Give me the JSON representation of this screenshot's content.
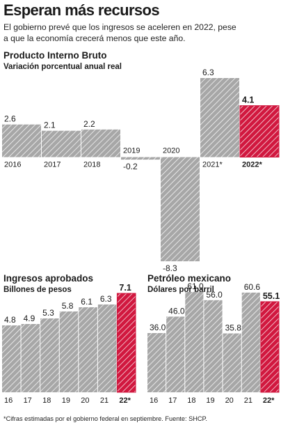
{
  "headline": "Esperan más recursos",
  "subtitle": "El gobierno prevé que los ingresos se aceleren en 2022, pese a que la economía crecerá menos que este año.",
  "colors": {
    "gray": "#a7a7a7",
    "highlight": "#d1183f",
    "hatch": "#ffffff"
  },
  "footnote": "*Cifras estimadas por el gobierno federal en septiembre. Fuente: SHCP.",
  "chart_data": [
    {
      "type": "bar",
      "title": "Producto Interno Bruto",
      "subtitle": "Variación porcentual anual real",
      "categories": [
        "2016",
        "2017",
        "2018",
        "2019",
        "2020",
        "2021*",
        "2022*"
      ],
      "values": [
        2.6,
        2.1,
        2.2,
        -0.2,
        -8.3,
        6.3,
        4.1
      ],
      "value_labels": [
        "2.6",
        "2.1",
        "2.2",
        "-0.2",
        "-8.3",
        "6.3",
        "4.1"
      ],
      "highlight_index": 6,
      "ylim": [
        -8.3,
        6.3
      ]
    },
    {
      "type": "bar",
      "title": "Ingresos aprobados",
      "subtitle": "Billones de pesos",
      "categories": [
        "16",
        "17",
        "18",
        "19",
        "20",
        "21",
        "22*"
      ],
      "values": [
        4.8,
        4.9,
        5.3,
        5.8,
        6.1,
        6.3,
        7.1
      ],
      "value_labels": [
        "4.8",
        "4.9",
        "5.3",
        "5.8",
        "6.1",
        "6.3",
        "7.1"
      ],
      "highlight_index": 6,
      "ylim": [
        0,
        7.1
      ]
    },
    {
      "type": "bar",
      "title": "Petróleo mexicano",
      "subtitle": "Dólares por barril",
      "categories": [
        "16",
        "17",
        "18",
        "19",
        "20",
        "21",
        "22*"
      ],
      "values": [
        36.0,
        46.0,
        61.0,
        56.0,
        35.8,
        60.6,
        55.1
      ],
      "value_labels": [
        "36.0",
        "46.0",
        "61.0",
        "56.0",
        "35.8",
        "60.6",
        "55.1"
      ],
      "highlight_index": 6,
      "ylim": [
        0,
        61
      ]
    }
  ]
}
